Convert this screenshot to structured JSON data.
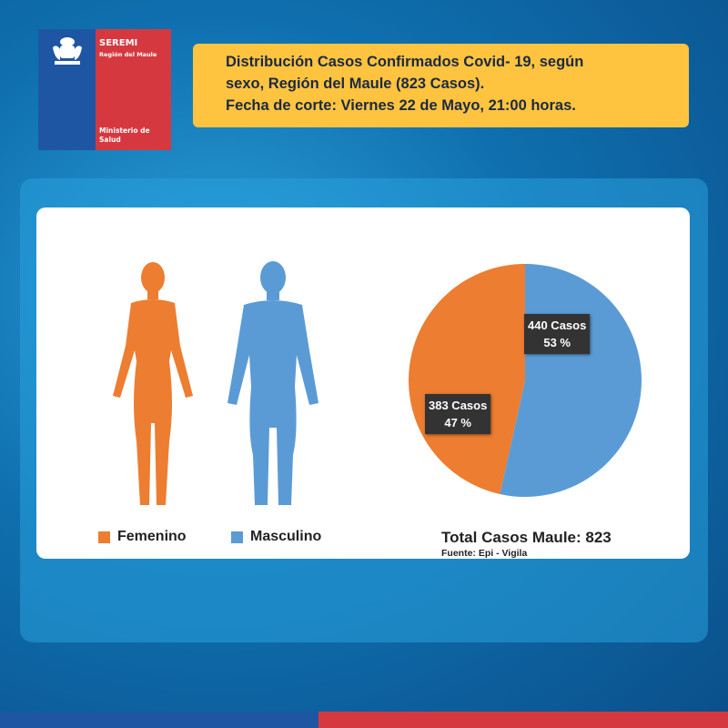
{
  "logo": {
    "title": "SEREMI",
    "subtitle": "Región del Maule",
    "ministry": "Ministerio de Salud"
  },
  "header": {
    "line1": "Distribución  Casos Confirmados Covid- 19, según",
    "line2": "sexo, Región del Maule (823 Casos).",
    "line3": "Fecha de corte: Viernes 22 de Mayo, 21:00 horas."
  },
  "colors": {
    "femenino": "#ed7d31",
    "masculino": "#5b9bd5",
    "label_bg": "#333333",
    "banner": "#fec440"
  },
  "chart_data": {
    "type": "pie",
    "categories": [
      "Masculino",
      "Femenino"
    ],
    "values": [
      440,
      383
    ],
    "percent": [
      53,
      47
    ],
    "labels": [
      {
        "cases": "440 Casos",
        "pct": "53 %"
      },
      {
        "cases": "383 Casos",
        "pct": "47 %"
      }
    ],
    "legend": [
      "Femenino",
      "Masculino"
    ],
    "legend_placement": "bottom-left",
    "total": "Total Casos Maule: 823",
    "source": "Fuente: Epi - Vigila"
  }
}
